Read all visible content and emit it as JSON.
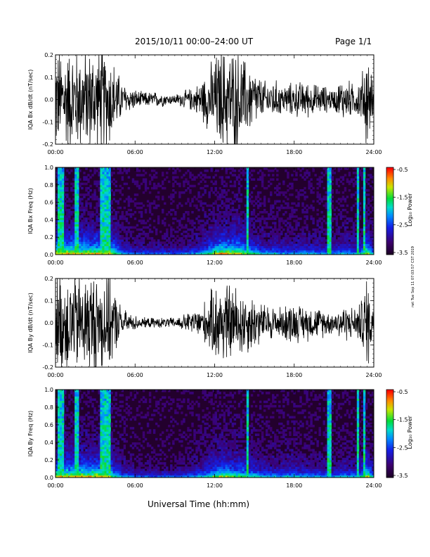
{
  "header": {
    "date_range": "2015/10/11   00:00–24:00 UT",
    "page": "Page 1/1"
  },
  "x_axis_title": "Universal Time (hh:mm)",
  "stamp": "rwt Tue Sep 11 07:03:57 CST 2019",
  "colorbar": {
    "label": "Log₁₀ Power",
    "ticks": [
      "-0.5",
      "-1.5",
      "-2.5",
      "-3.5"
    ]
  },
  "chart_data": [
    {
      "type": "line",
      "ylabel": "IQA Bx dB/dt (nT/sec)",
      "xlabel": "",
      "xticks": [
        "00:00",
        "06:00",
        "12:00",
        "18:00",
        "24:00"
      ],
      "yticks": [
        "0.2",
        "0.1",
        "0.0",
        "-0.1",
        "-0.2"
      ],
      "xlim": [
        0,
        24
      ],
      "ylim": [
        -0.2,
        0.2
      ],
      "envelope": {
        "hours": [
          0,
          0.5,
          1,
          1.5,
          2,
          2.5,
          3,
          3.5,
          4,
          4.5,
          5,
          5.5,
          6,
          6.5,
          7,
          7.5,
          8,
          8.5,
          9,
          9.5,
          10,
          10.5,
          11,
          11.5,
          12,
          12.5,
          13,
          13.5,
          14,
          14.5,
          15,
          15.5,
          16,
          16.5,
          17,
          17.5,
          18,
          18.5,
          19,
          19.5,
          20,
          20.5,
          21,
          21.5,
          22,
          22.5,
          23,
          23.5,
          24
        ],
        "amplitude": [
          0.2,
          0.2,
          0.2,
          0.2,
          0.2,
          0.2,
          0.2,
          0.2,
          0.2,
          0.14,
          0.07,
          0.05,
          0.04,
          0.03,
          0.03,
          0.03,
          0.03,
          0.02,
          0.02,
          0.03,
          0.04,
          0.05,
          0.08,
          0.12,
          0.17,
          0.2,
          0.2,
          0.2,
          0.18,
          0.14,
          0.12,
          0.08,
          0.07,
          0.08,
          0.06,
          0.06,
          0.07,
          0.07,
          0.07,
          0.06,
          0.06,
          0.05,
          0.04,
          0.08,
          0.08,
          0.06,
          0.08,
          0.2,
          0.05
        ]
      }
    },
    {
      "type": "heatmap",
      "ylabel": "IQA Bx Freq (Hz)",
      "xlabel": "",
      "xticks": [
        "00:00",
        "06:00",
        "12:00",
        "18:00",
        "24:00"
      ],
      "yticks": [
        "1.0",
        "0.8",
        "0.6",
        "0.4",
        "0.2",
        "0.0"
      ],
      "xlim": [
        0,
        24
      ],
      "ylim": [
        0,
        1.0
      ],
      "zlim": [
        -3.5,
        -0.5
      ],
      "vertical_streaks_hours": [
        0.2,
        0.5,
        1.6,
        1.7,
        3.5,
        3.7,
        4.0,
        14.5,
        20.6,
        22.8,
        23.3
      ]
    },
    {
      "type": "line",
      "ylabel": "IQA By dB/dt (nT/sec)",
      "xlabel": "",
      "xticks": [
        "00:00",
        "06:00",
        "12:00",
        "18:00",
        "24:00"
      ],
      "yticks": [
        "0.2",
        "0.1",
        "0.0",
        "-0.1",
        "-0.2"
      ],
      "xlim": [
        0,
        24
      ],
      "ylim": [
        -0.2,
        0.2
      ],
      "envelope": {
        "hours": [
          0,
          0.5,
          1,
          1.5,
          2,
          2.5,
          3,
          3.5,
          4,
          4.5,
          5,
          5.5,
          6,
          6.5,
          7,
          7.5,
          8,
          8.5,
          9,
          9.5,
          10,
          10.5,
          11,
          11.5,
          12,
          12.5,
          13,
          13.5,
          14,
          14.5,
          15,
          15.5,
          16,
          16.5,
          17,
          17.5,
          18,
          18.5,
          19,
          19.5,
          20,
          20.5,
          21,
          21.5,
          22,
          22.5,
          23,
          23.5,
          24
        ],
        "amplitude": [
          0.2,
          0.2,
          0.2,
          0.2,
          0.2,
          0.2,
          0.2,
          0.2,
          0.2,
          0.12,
          0.06,
          0.04,
          0.03,
          0.02,
          0.02,
          0.02,
          0.02,
          0.02,
          0.02,
          0.03,
          0.04,
          0.05,
          0.07,
          0.1,
          0.15,
          0.17,
          0.16,
          0.15,
          0.14,
          0.12,
          0.11,
          0.08,
          0.07,
          0.07,
          0.06,
          0.08,
          0.08,
          0.07,
          0.07,
          0.06,
          0.06,
          0.05,
          0.04,
          0.07,
          0.07,
          0.06,
          0.08,
          0.2,
          0.05
        ]
      }
    },
    {
      "type": "heatmap",
      "ylabel": "IQA By Freq (Hz)",
      "xlabel": "",
      "xticks": [
        "00:00",
        "06:00",
        "12:00",
        "18:00",
        "24:00"
      ],
      "yticks": [
        "1.0",
        "0.8",
        "0.6",
        "0.4",
        "0.2",
        "0.0"
      ],
      "xlim": [
        0,
        24
      ],
      "ylim": [
        0,
        1.0
      ],
      "zlim": [
        -3.5,
        -0.5
      ],
      "vertical_streaks_hours": [
        0.2,
        0.5,
        1.6,
        1.7,
        3.5,
        3.7,
        4.0,
        14.5,
        20.6,
        22.8,
        23.3
      ]
    }
  ]
}
